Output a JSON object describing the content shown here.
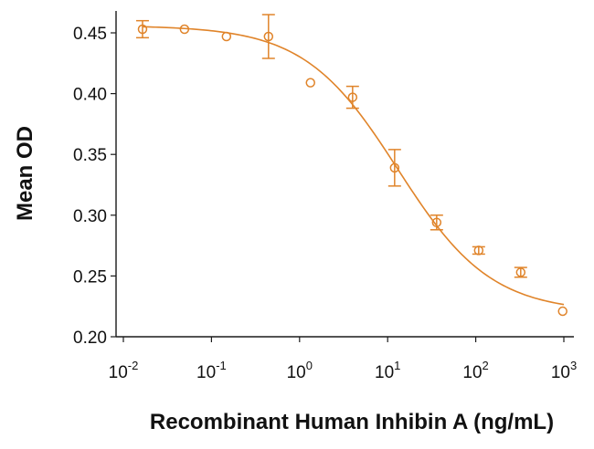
{
  "chart_data": {
    "type": "scatter",
    "title": "",
    "xlabel": "Recombinant Human Inhibin A (ng/mL)",
    "ylabel": "Mean OD",
    "x_scale": "log",
    "xlim": [
      0.01,
      1000
    ],
    "ylim": [
      0.2,
      0.47
    ],
    "y_ticks": [
      0.2,
      0.25,
      0.3,
      0.35,
      0.4,
      0.45
    ],
    "y_tick_labels": [
      "0.20",
      "0.25",
      "0.30",
      "0.35",
      "0.40",
      "0.45"
    ],
    "x_ticks": [
      {
        "value": 0.01,
        "base": "10",
        "exp": "-2"
      },
      {
        "value": 0.1,
        "base": "10",
        "exp": "-1"
      },
      {
        "value": 1,
        "base": "10",
        "exp": "0"
      },
      {
        "value": 10,
        "base": "10",
        "exp": "1"
      },
      {
        "value": 100,
        "base": "10",
        "exp": "2"
      },
      {
        "value": 1000,
        "base": "10",
        "exp": "3"
      }
    ],
    "series": [
      {
        "name": "Mean OD",
        "color": "#e0842a",
        "x": [
          0.0165,
          0.0494,
          0.148,
          0.444,
          1.33,
          4.0,
          12.0,
          36.0,
          108,
          324,
          970
        ],
        "y": [
          0.453,
          0.453,
          0.447,
          0.447,
          0.409,
          0.397,
          0.339,
          0.294,
          0.271,
          0.253,
          0.221
        ],
        "err": [
          0.007,
          0.002,
          0.002,
          0.018,
          0.002,
          0.009,
          0.015,
          0.006,
          0.003,
          0.004,
          0.002
        ]
      }
    ],
    "fit": {
      "model": "4PL",
      "top": 0.456,
      "bottom": 0.22,
      "ec50": 13.0,
      "hill": 0.82
    }
  }
}
